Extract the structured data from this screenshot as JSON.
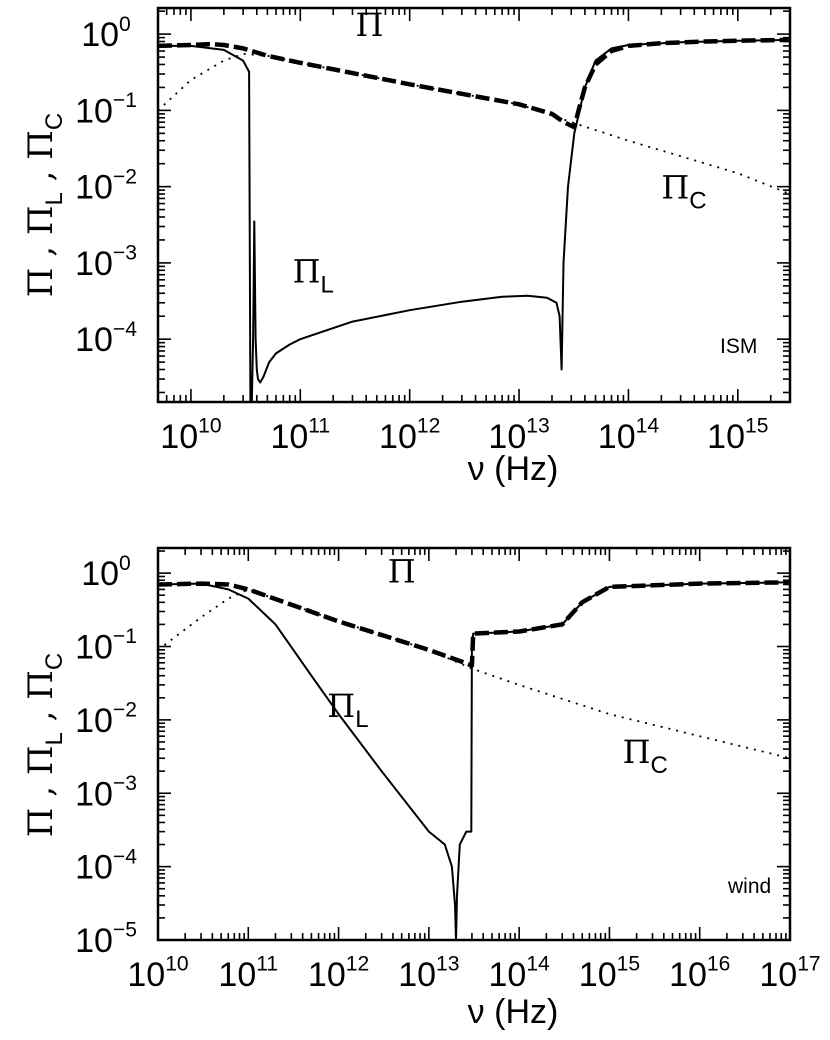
{
  "chart_data": [
    {
      "type": "line",
      "log_x": true,
      "log_y": true,
      "xlim": [
        5000000000.0,
        3000000000000000.0
      ],
      "ylim": [
        1.5e-05,
        2.2
      ],
      "x_ticks": [
        10000000000.0,
        100000000000.0,
        1000000000000.0,
        10000000000000.0,
        100000000000000.0,
        1000000000000000.0
      ],
      "y_ticks": [
        0.0001,
        0.001,
        0.01,
        0.1,
        1
      ],
      "x_tick_labels": [
        [
          "10",
          "10"
        ],
        [
          "10",
          "11"
        ],
        [
          "10",
          "12"
        ],
        [
          "10",
          "13"
        ],
        [
          "10",
          "14"
        ],
        [
          "10",
          "15"
        ]
      ],
      "y_tick_labels": [
        [
          "10",
          "−4"
        ],
        [
          "10",
          "−3"
        ],
        [
          "10",
          "−2"
        ],
        [
          "10",
          "−1"
        ],
        [
          "10",
          "0"
        ]
      ],
      "xlabel": "ν    (Hz)",
      "ylabel": "Π ,  ΠL , ΠC",
      "corner_label": "ISM",
      "annotations": [
        {
          "text": "Π",
          "sub": "",
          "x": 320000000000.0,
          "y": 0.95
        },
        {
          "text": "Π",
          "sub": "L",
          "x": 85000000000.0,
          "y": 0.00055
        },
        {
          "text": "Π",
          "sub": "C",
          "x": 200000000000000.0,
          "y": 0.007
        }
      ],
      "series": [
        {
          "style": "dashed",
          "x": [
            5000000000.0,
            10000000000.0,
            15000000000.0,
            20000000000.0,
            30000000000.0,
            36000000000.0,
            50000000000.0,
            100000000000.0,
            1000000000000.0,
            10000000000000.0,
            20000000000000.0,
            25000000000000.0,
            32000000000000.0,
            35000000000000.0,
            40000000000000.0,
            50000000000000.0,
            70000000000000.0,
            100000000000000.0,
            200000000000000.0,
            500000000000000.0,
            1000000000000000.0,
            3000000000000000.0
          ],
          "y": [
            0.7,
            0.72,
            0.74,
            0.72,
            0.65,
            0.6,
            0.52,
            0.42,
            0.22,
            0.12,
            0.09,
            0.072,
            0.06,
            0.1,
            0.2,
            0.4,
            0.6,
            0.7,
            0.76,
            0.8,
            0.82,
            0.84
          ]
        },
        {
          "style": "dotted",
          "x": [
            5000000000.0,
            10000000000.0,
            20000000000.0,
            30000000000.0,
            50000000000.0,
            100000000000.0,
            1000000000000.0,
            10000000000000.0,
            35000000000000.0,
            100000000000000.0,
            1000000000000000.0,
            3000000000000000.0
          ],
          "y": [
            0.1,
            0.25,
            0.45,
            0.55,
            0.52,
            0.42,
            0.22,
            0.12,
            0.065,
            0.04,
            0.015,
            0.008
          ]
        },
        {
          "style": "solid",
          "x": [
            5000000000.0,
            10000000000.0,
            20000000000.0,
            30000000000.0,
            34000000000.0,
            35000000000.0,
            35500000000.0,
            36000000000.0,
            37000000000.0,
            38000000000.0,
            39000000000.0,
            40000000000.0,
            41000000000.0,
            43000000000.0,
            46000000000.0,
            52000000000.0,
            60000000000.0,
            80000000000.0,
            100000000000.0,
            300000000000.0,
            1000000000000.0,
            3000000000000.0,
            7000000000000.0,
            12000000000000.0,
            18000000000000.0,
            22000000000000.0,
            23500000000000.0,
            24500000000000.0,
            25500000000000.0,
            28000000000000.0,
            32000000000000.0,
            40000000000000.0,
            50000000000000.0,
            70000000000000.0,
            100000000000000.0,
            300000000000000.0,
            1000000000000000.0,
            3000000000000000.0
          ],
          "y": [
            0.7,
            0.7,
            0.62,
            0.45,
            0.32,
            1.5e-05,
            1.5e-05,
            1.5e-05,
            0.0001,
            0.0035,
            0.0001,
            4e-05,
            3e-05,
            2.7e-05,
            3.2e-05,
            5e-05,
            6.5e-05,
            8.5e-05,
            0.0001,
            0.00017,
            0.00024,
            0.00031,
            0.00036,
            0.00037,
            0.00035,
            0.0003,
            0.0002,
            4e-05,
            0.001,
            0.01,
            0.05,
            0.2,
            0.45,
            0.65,
            0.72,
            0.78,
            0.82,
            0.84
          ]
        }
      ]
    },
    {
      "type": "line",
      "log_x": true,
      "log_y": true,
      "xlim": [
        10000000000.0,
        1e+17
      ],
      "ylim": [
        1e-05,
        2.2
      ],
      "x_ticks": [
        10000000000.0,
        100000000000.0,
        1000000000000.0,
        10000000000000.0,
        100000000000000.0,
        1000000000000000.0,
        1e+16,
        1e+17
      ],
      "y_ticks": [
        1e-05,
        0.0001,
        0.001,
        0.01,
        0.1,
        1
      ],
      "x_tick_labels": [
        [
          "10",
          "10"
        ],
        [
          "10",
          "11"
        ],
        [
          "10",
          "12"
        ],
        [
          "10",
          "13"
        ],
        [
          "10",
          "14"
        ],
        [
          "10",
          "15"
        ],
        [
          "10",
          "16"
        ],
        [
          "10",
          "17"
        ]
      ],
      "y_tick_labels": [
        [
          "10",
          "−5"
        ],
        [
          "10",
          "−4"
        ],
        [
          "10",
          "−3"
        ],
        [
          "10",
          "−2"
        ],
        [
          "10",
          "−1"
        ],
        [
          "10",
          "0"
        ]
      ],
      "xlabel": "ν    (Hz)",
      "ylabel": "Π ,  ΠL , ΠC",
      "corner_label": "wind",
      "annotations": [
        {
          "text": "Π",
          "sub": "",
          "x": 3500000000000.0,
          "y": 0.75
        },
        {
          "text": "Π",
          "sub": "L",
          "x": 750000000000.0,
          "y": 0.011
        },
        {
          "text": "Π",
          "sub": "C",
          "x": 1400000000000000.0,
          "y": 0.0026
        }
      ],
      "series": [
        {
          "style": "dashed",
          "x": [
            10000000000.0,
            30000000000.0,
            60000000000.0,
            100000000000.0,
            1000000000000.0,
            10000000000000.0,
            25000000000000.0,
            30000000000000.0,
            31000000000000.0,
            100000000000000.0,
            300000000000000.0,
            500000000000000.0,
            1000000000000000.0,
            1e+16,
            1e+17
          ],
          "y": [
            0.7,
            0.72,
            0.7,
            0.6,
            0.22,
            0.09,
            0.06,
            0.055,
            0.15,
            0.16,
            0.2,
            0.4,
            0.65,
            0.72,
            0.75
          ]
        },
        {
          "style": "dotted",
          "x": [
            10000000000.0,
            30000000000.0,
            60000000000.0,
            100000000000.0,
            1000000000000.0,
            10000000000000.0,
            30000000000000.0,
            100000000000000.0,
            1000000000000000.0,
            1e+16,
            1e+17
          ],
          "y": [
            0.09,
            0.25,
            0.45,
            0.6,
            0.22,
            0.09,
            0.05,
            0.03,
            0.012,
            0.006,
            0.003
          ]
        },
        {
          "style": "solid",
          "x": [
            10000000000.0,
            30000000000.0,
            60000000000.0,
            100000000000.0,
            200000000000.0,
            500000000000.0,
            1000000000000.0,
            3000000000000.0,
            10000000000000.0,
            15000000000000.0,
            18000000000000.0,
            19500000000000.0,
            20000000000000.0,
            20500000000000.0,
            22000000000000.0,
            26000000000000.0,
            29500000000000.0,
            30000000000000.0,
            31000000000000.0,
            100000000000000.0,
            300000000000000.0,
            500000000000000.0,
            1000000000000000.0,
            1e+16,
            1e+17
          ],
          "y": [
            0.7,
            0.72,
            0.6,
            0.45,
            0.2,
            0.04,
            0.012,
            0.002,
            0.0003,
            0.0002,
            0.0001,
            3e-05,
            1e-05,
            4e-05,
            0.0002,
            0.0003,
            0.0003,
            0.1,
            0.15,
            0.16,
            0.2,
            0.4,
            0.65,
            0.72,
            0.75
          ]
        }
      ]
    }
  ]
}
